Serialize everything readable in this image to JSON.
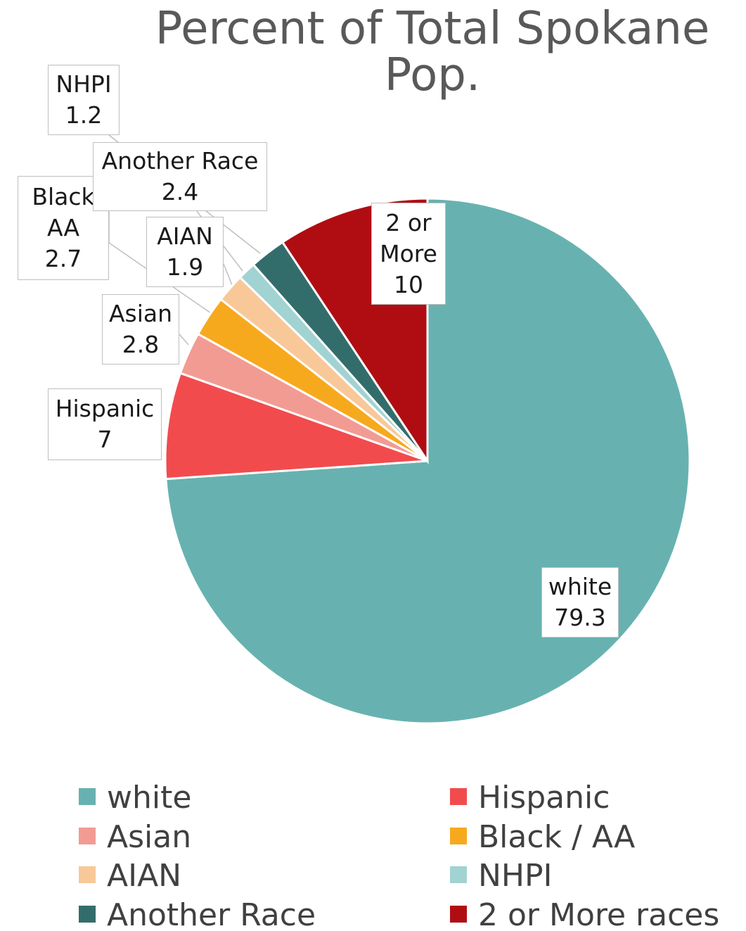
{
  "chart_data": {
    "type": "pie",
    "title": "Percent of Total Spokane Pop.",
    "categories": [
      "white",
      "Hispanic",
      "Asian",
      "Black / AA",
      "AIAN",
      "NHPI",
      "Another Race",
      "2 or More races"
    ],
    "label_names": [
      "white",
      "Hispanic",
      "Asian",
      "Black AA",
      "AIAN",
      "NHPI",
      "Another Race",
      "2 or More"
    ],
    "values": [
      79.3,
      7,
      2.8,
      2.7,
      1.9,
      1.2,
      2.4,
      10
    ],
    "colors": [
      "#67b2b0",
      "#f24b4e",
      "#f29b93",
      "#f7a91e",
      "#f8c899",
      "#a1d3d2",
      "#336d6b",
      "#b00d13"
    ],
    "legend": "bottom"
  }
}
